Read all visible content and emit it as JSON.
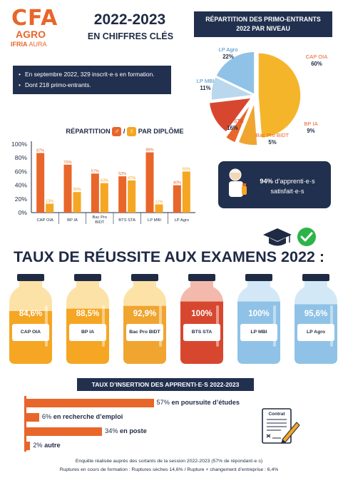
{
  "logo": {
    "cfa": "CFA",
    "agro": "AGRO",
    "sub_a": "IFRIA",
    "sub_b": "AURA"
  },
  "header": {
    "title": "2022-2023",
    "subtitle": "EN CHIFFRES CLÉS"
  },
  "info": {
    "items": [
      "En septembre 2022, 329 inscrit·e·s en formation.",
      "Dont 218 primo-entrants."
    ]
  },
  "pie": {
    "title_line1": "RÉPARTITION DES PRIMO-ENTRANTS",
    "title_line2": "2022 PAR NIVEAU"
  },
  "bars": {
    "title_a": "RÉPARTITION",
    "title_sep": "/",
    "title_b": "PAR DIPLÔME",
    "male_symbol": "♂",
    "female_symbol": "♀"
  },
  "satisfaction": {
    "value": "94%",
    "text_a": "d’apprenti·e·s",
    "text_b": "satisfait·e·s"
  },
  "reussite": {
    "title": "TAUX DE RÉUSSITE AUX EXAMENS 2022 :",
    "bottles": [
      {
        "label": "CAP OIA",
        "value": "84,6%",
        "rate": 84.6,
        "color": "#f5a623",
        "tint": "#fde2a8"
      },
      {
        "label": "BP IA",
        "value": "88,5%",
        "rate": 88.5,
        "color": "#f5a623",
        "tint": "#fde2a8"
      },
      {
        "label": "Bac Pro BIDT",
        "value": "92,9%",
        "rate": 92.9,
        "color": "#f0a531",
        "tint": "#fde2a8"
      },
      {
        "label": "BTS STA",
        "value": "100%",
        "rate": 100,
        "color": "#d7472f",
        "tint": "#f4b9ad"
      },
      {
        "label": "LP MBI",
        "value": "100%",
        "rate": 100,
        "color": "#8fc2e6",
        "tint": "#d3e8f6"
      },
      {
        "label": "LP Agro",
        "value": "95,6%",
        "rate": 95.6,
        "color": "#8fc2e6",
        "tint": "#d3e8f6"
      }
    ]
  },
  "insertion": {
    "title": "TAUX D’INSERTION DES APPRENTI·E·S 2022-2023",
    "items": [
      {
        "value": "57%",
        "text": "en poursuite d’études",
        "pct": 57
      },
      {
        "value": "6%",
        "text": "en recherche d’emploi",
        "pct": 6
      },
      {
        "value": "34%",
        "text": "en poste",
        "pct": 34
      },
      {
        "value": "2%",
        "text": "autre",
        "pct": 2
      }
    ],
    "contract_label": "Contrat"
  },
  "footer": {
    "line1": "Enquête réalisée auprès des sortants de la session 2022-2023 (57% de répondant·e·s)",
    "line2": "Ruptures en cours de formation : Ruptures sèches 14,6% / Rupture + changement d’entreprise : 6,4%"
  },
  "colors": {
    "navy": "#22304f",
    "orange": "#e8662a",
    "amber": "#f5a623",
    "red": "#d7472f",
    "blue": "#8fc2e6",
    "green": "#2db34a"
  },
  "chart_data": [
    {
      "type": "pie",
      "title": "RÉPARTITION DES PRIMO-ENTRANTS 2022 PAR NIVEAU",
      "slices": [
        {
          "label": "CAP OIA",
          "value": 60,
          "display": "60%",
          "color": "#f5b52b"
        },
        {
          "label": "BP IA",
          "value": 9,
          "display": "9%",
          "color": "#f0a531"
        },
        {
          "label": "Bac Pro BIDT",
          "value": 5,
          "display": "5%",
          "color": "#e8662a"
        },
        {
          "label": "BTS STA",
          "value": 16,
          "display": "16%",
          "color": "#d7472f"
        },
        {
          "label": "LP MBI",
          "value": 11,
          "display": "11%",
          "color": "#b9d8ee"
        },
        {
          "label": "LP Agro",
          "value": 22,
          "display": "22%",
          "color": "#8fc2e6"
        }
      ]
    },
    {
      "type": "bar",
      "title": "RÉPARTITION ♂ / ♀ PAR DIPLÔME",
      "categories": [
        "CAP OIA",
        "BP IA",
        "Bac Pro BIDT",
        "BTS STA",
        "LP MBI",
        "LP Agro"
      ],
      "series": [
        {
          "name": "♂",
          "values": [
            87,
            70,
            57,
            53,
            88,
            40
          ],
          "labels": [
            "87%",
            "70%",
            "57%",
            "53%",
            "88%",
            "40%"
          ],
          "color": "#e8662a"
        },
        {
          "name": "♀",
          "values": [
            13,
            30,
            43,
            47,
            12,
            60
          ],
          "labels": [
            "13%",
            "30%",
            "43%",
            "47%",
            "12%",
            "60%"
          ],
          "color": "#f5a623"
        }
      ],
      "yticks": [
        "0%",
        "20%",
        "40%",
        "60%",
        "80%",
        "100%"
      ],
      "ylim": [
        0,
        100
      ],
      "grid": false
    }
  ]
}
